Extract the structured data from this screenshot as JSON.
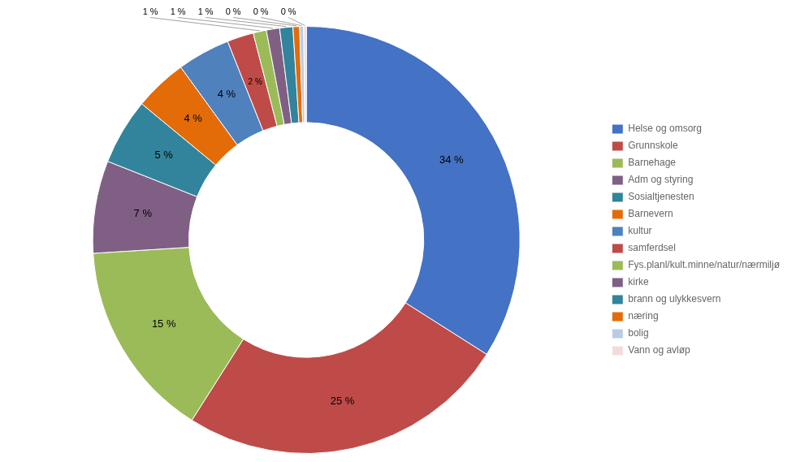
{
  "chart_data": {
    "type": "doughnut",
    "categories": [
      "Helse og omsorg",
      "Grunnskole",
      "Barnehage",
      "Adm og styring",
      "Sosialtjenesten",
      "Barnevern",
      "kultur",
      "samferdsel",
      "Fys.planl/kult.minne/natur/nærmiljø",
      "kirke",
      "brann og ulykkesvern",
      "næring",
      "bolig",
      "Vann og avløp"
    ],
    "values": [
      34,
      25,
      15,
      7,
      5,
      4,
      4,
      2,
      1,
      1,
      1,
      0.5,
      0.3,
      0.2
    ],
    "value_labels": [
      "34 %",
      "25 %",
      "15 %",
      "7 %",
      "5 %",
      "4 %",
      "4 %",
      "2 %",
      "1 %",
      "1 %",
      "1 %",
      "0 %",
      "0 %",
      "0 %"
    ],
    "colors": [
      "#4472C4",
      "#BE4B48",
      "#9BBB59",
      "#7F6084",
      "#31849B",
      "#E36C09",
      "#4F81BD",
      "#BE4B48",
      "#9BBB59",
      "#7F6084",
      "#31849B",
      "#E36C09",
      "#B8CCE4",
      "#F2DCDB"
    ],
    "legend": "right",
    "data_labels": true
  }
}
